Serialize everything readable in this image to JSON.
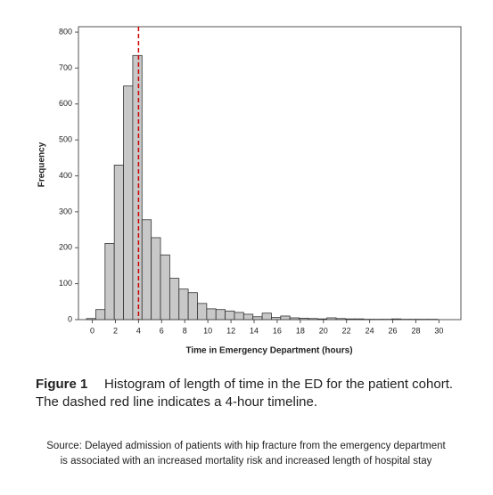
{
  "chart_data": {
    "type": "histogram",
    "bins": [
      -0.5,
      0.3,
      1.1,
      1.9,
      2.7,
      3.5,
      4.3,
      5.1,
      5.9,
      6.7,
      7.5,
      8.3,
      9.1,
      9.9,
      10.7,
      11.5,
      12.3,
      13.1,
      13.9,
      14.7,
      15.5,
      16.3,
      17.1,
      17.9,
      18.7,
      19.5,
      20.3,
      21.1,
      21.9,
      22.7,
      23.5,
      24.3,
      25.1,
      25.9,
      26.7,
      27.5,
      28.3,
      29.1,
      29.9
    ],
    "values": [
      3,
      28,
      212,
      430,
      650,
      735,
      278,
      228,
      180,
      115,
      85,
      75,
      45,
      30,
      28,
      24,
      20,
      15,
      8,
      18,
      6,
      10,
      5,
      4,
      3,
      2,
      5,
      3,
      2,
      2,
      1,
      1,
      1,
      2,
      1,
      1,
      1,
      1
    ],
    "color": "#c8c8c8",
    "x_label": "Time in Emergency Department (hours)",
    "y_label": "Frequency",
    "xlim": [
      -1.2,
      31.9
    ],
    "xticks": [
      0,
      2,
      4,
      6,
      8,
      10,
      12,
      14,
      16,
      18,
      20,
      22,
      24,
      26,
      28,
      30
    ],
    "ylim": [
      0,
      815
    ],
    "yticks": [
      0,
      100,
      200,
      300,
      400,
      500,
      600,
      700,
      800
    ],
    "grid": false,
    "reference_line": {
      "x": 4,
      "color": "#cc0000"
    },
    "figure_label": "Figure 1",
    "caption": [
      "Histogram of length of time in the ED for the patient cohort.",
      "The dashed red line indicates a 4-hour timeline."
    ],
    "source": [
      "Source: Delayed admission of patients with hip fracture from the emergency department",
      "is associated with an increased mortality risk and increased length of hospital stay"
    ]
  }
}
